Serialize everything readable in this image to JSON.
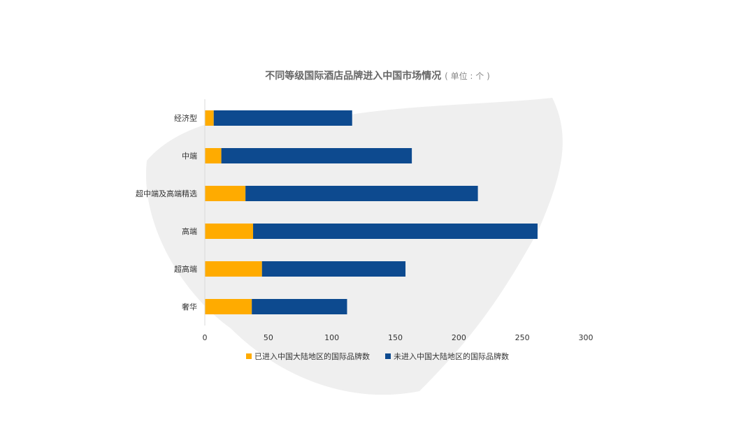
{
  "chart_data": {
    "type": "bar",
    "orientation": "horizontal",
    "stacked": true,
    "title": "不同等级国际酒店品牌进入中国市场情况",
    "title_unit": "( 单位 : 个 )",
    "categories": [
      "经济型",
      "中端",
      "超中端及高端精选",
      "高端",
      "超高端",
      "奢华"
    ],
    "series": [
      {
        "name": "已进入中国大陆地区的国际品牌数",
        "color": "#FFAB00",
        "values": [
          7,
          13,
          32,
          38,
          45,
          37
        ]
      },
      {
        "name": "未进入中国大陆地区的国际品牌数",
        "color": "#0D4A8F",
        "values": [
          109,
          150,
          183,
          224,
          113,
          75
        ]
      }
    ],
    "xlim": [
      0,
      300
    ],
    "xticks": [
      "0",
      "50",
      "100",
      "150",
      "200",
      "250",
      "300"
    ],
    "grid": false,
    "legend_position": "bottom"
  }
}
